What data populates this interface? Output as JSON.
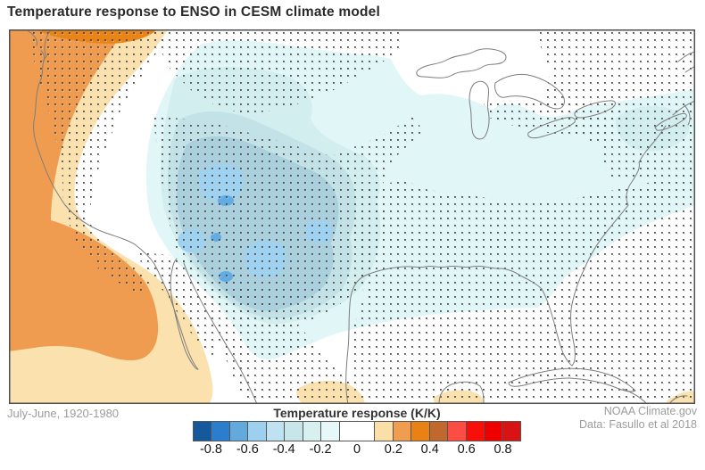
{
  "title": "Temperature response to ENSO in CESM climate model",
  "footer": {
    "period": "July-June, 1920-1980",
    "credit1": "NOAA Climate.gov",
    "credit2": "Data: Fasullo et al 2018"
  },
  "colorbar": {
    "label": "Temperature response (K/K)",
    "tick_labels": [
      "-0.8",
      "-0.6",
      "-0.4",
      "-0.2",
      "0",
      "0.2",
      "0.4",
      "0.6",
      "0.8"
    ],
    "cells": [
      {
        "span": 1,
        "from": -0.9,
        "to": -0.8,
        "color": "#15599c"
      },
      {
        "span": 1,
        "from": -0.8,
        "to": -0.7,
        "color": "#2b7ecd"
      },
      {
        "span": 1,
        "from": -0.7,
        "to": -0.6,
        "color": "#62a9dc"
      },
      {
        "span": 1,
        "from": -0.6,
        "to": -0.5,
        "color": "#9cd0ee"
      },
      {
        "span": 1,
        "from": -0.5,
        "to": -0.4,
        "color": "#bfe2f3"
      },
      {
        "span": 1,
        "from": -0.4,
        "to": -0.3,
        "color": "#c7e6ea"
      },
      {
        "span": 1,
        "from": -0.3,
        "to": -0.2,
        "color": "#d8f0ef"
      },
      {
        "span": 1,
        "from": -0.2,
        "to": -0.1,
        "color": "#e6f8f7"
      },
      {
        "span": 2,
        "from": -0.1,
        "to": 0.1,
        "color": "#ffffff"
      },
      {
        "span": 1,
        "from": 0.1,
        "to": 0.2,
        "color": "#fbdfa9"
      },
      {
        "span": 1,
        "from": 0.2,
        "to": 0.3,
        "color": "#f09d50"
      },
      {
        "span": 1,
        "from": 0.3,
        "to": 0.4,
        "color": "#e98115"
      },
      {
        "span": 1,
        "from": 0.4,
        "to": 0.5,
        "color": "#c0682e"
      },
      {
        "span": 1,
        "from": 0.5,
        "to": 0.6,
        "color": "#fb4d44"
      },
      {
        "span": 1,
        "from": 0.6,
        "to": 0.7,
        "color": "#f90f0a"
      },
      {
        "span": 1,
        "from": 0.7,
        "to": 0.8,
        "color": "#ee0000"
      },
      {
        "span": 1,
        "from": 0.8,
        "to": 0.9,
        "color": "#d91214"
      }
    ]
  },
  "chart_data": {
    "type": "heatmap",
    "subtype": "filled-contour-map",
    "title": "Temperature response to ENSO in CESM climate model",
    "units": "K/K",
    "period": "July-June, 1920-1980",
    "source": "Data: Fasullo et al 2018",
    "provider": "NOAA Climate.gov",
    "legend_position": "bottom-center",
    "colorbar_ticks": [
      -0.8,
      -0.6,
      -0.4,
      -0.2,
      0,
      0.2,
      0.4,
      0.6,
      0.8
    ],
    "value_range": [
      -0.9,
      0.9
    ],
    "map_extent": "North America: Pacific coast to western Atlantic, Great Lakes to Caribbean",
    "regions": [
      {
        "area": "Pacific Northwest coast and adjacent offshore",
        "value_KK": "+0.2 to +0.4",
        "stippled": true
      },
      {
        "area": "Subtropical Pacific southwest of Baja California",
        "value_KK": "+0.1 to +0.3",
        "stippled": false
      },
      {
        "area": "Southern Great Plains, Rockies and northern Mexico",
        "value_KK": "-0.3 to -0.6",
        "stippled": true
      },
      {
        "area": "Central and eastern United States",
        "value_KK": "-0.1 to -0.3",
        "stippled": "partly"
      },
      {
        "area": "Great Lakes region and far northern interior",
        "value_KK": "about 0",
        "stippled": false
      },
      {
        "area": "Northeast corner and western Atlantic",
        "value_KK": "0 to -0.1",
        "stippled": true
      },
      {
        "area": "Gulf of Mexico coast, Florida and Southeast",
        "value_KK": "-0.1 to -0.2",
        "stippled": true
      },
      {
        "area": "Caribbean, Yucatan and far southeast corner",
        "value_KK": "0 to +0.2",
        "stippled": true
      }
    ]
  }
}
